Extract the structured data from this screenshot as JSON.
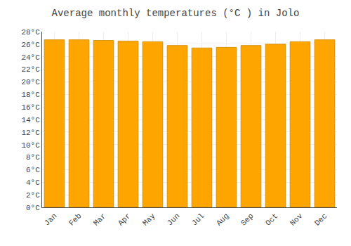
{
  "chart_data": {
    "type": "bar",
    "title": "Average monthly temperatures (°C ) in Jolo",
    "categories": [
      "Jan",
      "Feb",
      "Mar",
      "Apr",
      "May",
      "Jun",
      "Jul",
      "Aug",
      "Sep",
      "Oct",
      "Nov",
      "Dec"
    ],
    "values": [
      26.7,
      26.7,
      26.6,
      26.5,
      26.4,
      25.8,
      25.4,
      25.5,
      25.8,
      26.0,
      26.4,
      26.7
    ],
    "color": "#FFA500",
    "ylim": [
      0,
      28
    ],
    "yticks": [
      {
        "value": 0,
        "label": "0°C"
      },
      {
        "value": 2,
        "label": "2°C"
      },
      {
        "value": 4,
        "label": "4°C"
      },
      {
        "value": 6,
        "label": "6°C"
      },
      {
        "value": 8,
        "label": "8°C"
      },
      {
        "value": 10,
        "label": "10°C"
      },
      {
        "value": 12,
        "label": "12°C"
      },
      {
        "value": 14,
        "label": "14°C"
      },
      {
        "value": 16,
        "label": "16°C"
      },
      {
        "value": 18,
        "label": "18°C"
      },
      {
        "value": 20,
        "label": "20°C"
      },
      {
        "value": 22,
        "label": "22°C"
      },
      {
        "value": 24,
        "label": "24°C"
      },
      {
        "value": 26,
        "label": "26°C"
      },
      {
        "value": 28,
        "label": "28°C"
      }
    ],
    "grid": true
  }
}
